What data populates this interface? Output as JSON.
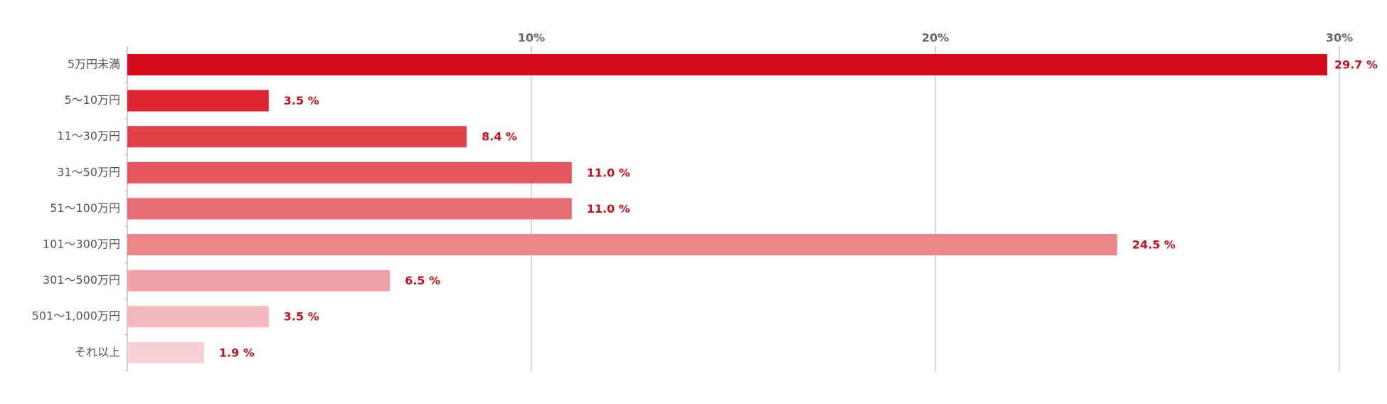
{
  "chart_data": {
    "type": "bar",
    "orientation": "horizontal",
    "categories": [
      "5万円未満",
      "5〜10万円",
      "11〜30万円",
      "31〜50万円",
      "51〜100万円",
      "101〜300万円",
      "301〜500万円",
      "501〜1,000万円",
      "それ以上"
    ],
    "values": [
      29.7,
      3.5,
      8.4,
      11.0,
      11.0,
      24.5,
      6.5,
      3.5,
      1.9
    ],
    "value_labels": [
      "29.7 %",
      "3.5 %",
      "8.4 %",
      "11.0 %",
      "11.0 %",
      "24.5 %",
      "6.5 %",
      "3.5 %",
      "1.9 %"
    ],
    "colors": [
      "#d40c19",
      "#dc2530",
      "#e04048",
      "#e5565e",
      "#e86d74",
      "#ec868b",
      "#f0a1a5",
      "#f3b9bb",
      "#f6d0d4"
    ],
    "xlim": [
      0,
      30
    ],
    "xticks": [
      {
        "value": 10,
        "label": "10%"
      },
      {
        "value": 20,
        "label": "20%"
      },
      {
        "value": 30,
        "label": "30%"
      }
    ],
    "grid": true
  }
}
